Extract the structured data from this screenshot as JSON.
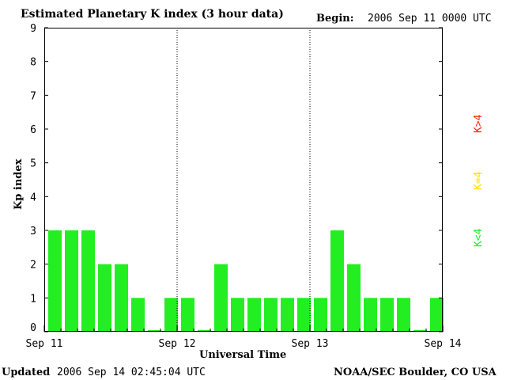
{
  "header": {
    "title": "Estimated Planetary K index (3 hour data)",
    "begin_label": "Begin:",
    "begin_value": "2006 Sep 11 0000 UTC"
  },
  "footer": {
    "updated_label": "Updated",
    "updated_value": "2006 Sep 14 02:45:04 UTC",
    "source": "NOAA/SEC Boulder, CO USA"
  },
  "legend": [
    {
      "label": "K>4",
      "color": "#ff2200"
    },
    {
      "label": "K=4",
      "color": "#ffdd00"
    },
    {
      "label": "K<4",
      "color": "#22ee22"
    }
  ],
  "chart_data": {
    "type": "bar",
    "title": "Estimated Planetary K index (3 hour data)",
    "xlabel": "Universal Time",
    "ylabel": "Kp index",
    "ylim": [
      0,
      9
    ],
    "yticks": [
      "0",
      "1",
      "2",
      "3",
      "4",
      "5",
      "6",
      "7",
      "8",
      "9"
    ],
    "day_labels": [
      "Sep 11",
      "Sep 12",
      "Sep 13",
      "Sep 14"
    ],
    "values": [
      3,
      3,
      3,
      2,
      2,
      1,
      0.05,
      1,
      1,
      0.05,
      2,
      1,
      1,
      1,
      1,
      1,
      1,
      3,
      2,
      1,
      1,
      1,
      0.05,
      1
    ],
    "bar_color": "#22ee22",
    "day_separators": "dotted"
  }
}
